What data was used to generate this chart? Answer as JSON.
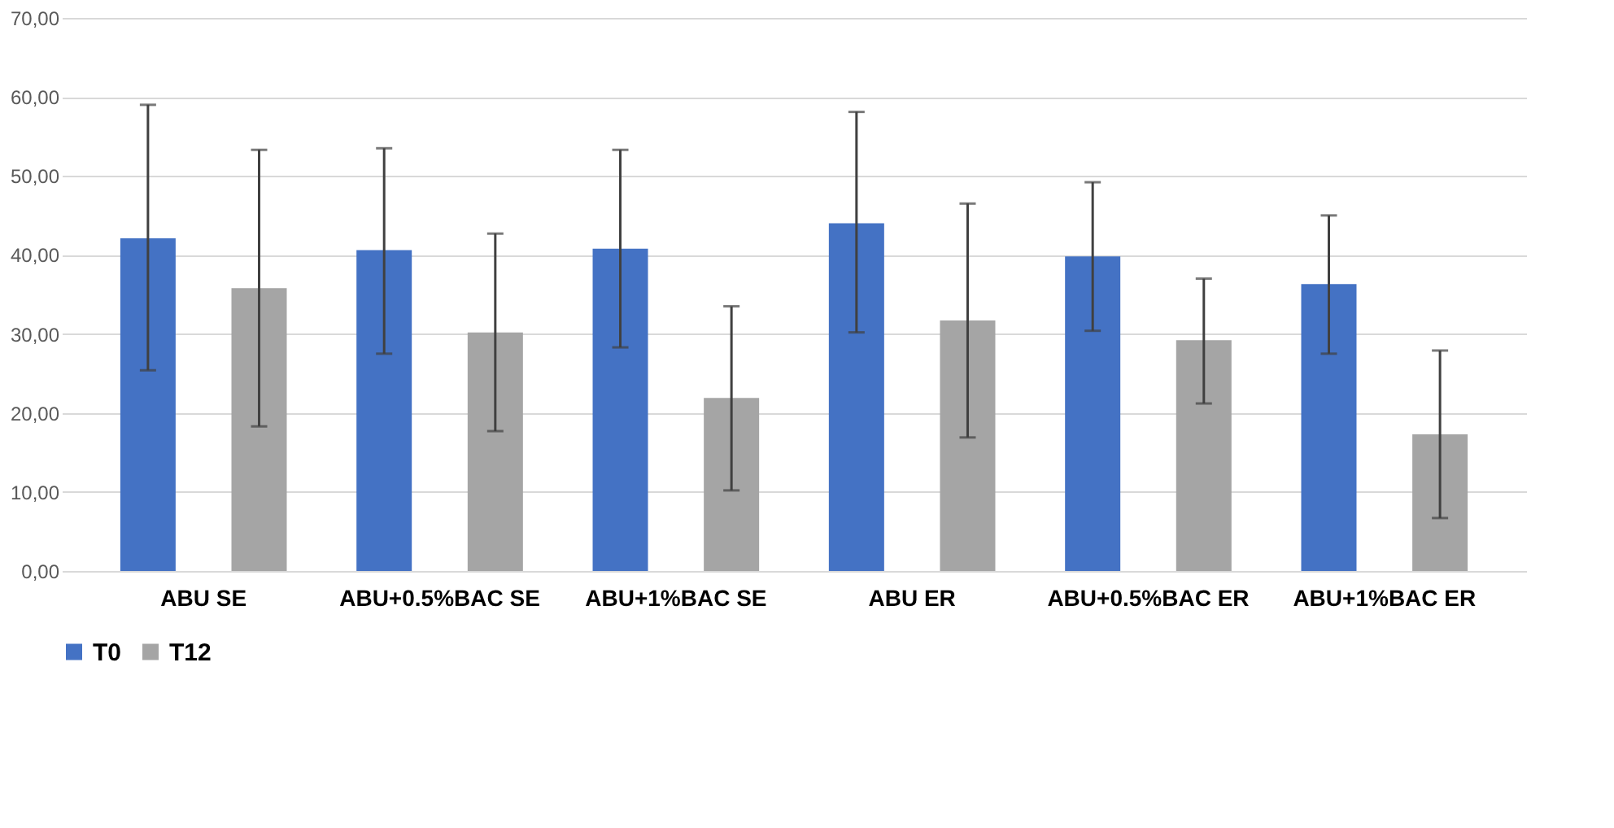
{
  "chart_data": {
    "type": "bar",
    "categories": [
      "ABU SE",
      "ABU+0.5%BAC SE",
      "ABU+1%BAC SE",
      "ABU ER",
      "ABU+0.5%BAC ER",
      "ABU+1%BAC ER"
    ],
    "series": [
      {
        "name": "T0",
        "color": "#4472c4",
        "values": [
          42.1,
          40.6,
          40.8,
          44.0,
          39.8,
          36.3
        ],
        "errors": [
          [
            25.4,
            59.0
          ],
          [
            27.5,
            53.5
          ],
          [
            28.3,
            53.3
          ],
          [
            30.2,
            58.1
          ],
          [
            30.4,
            49.2
          ],
          [
            27.5,
            45.0
          ]
        ]
      },
      {
        "name": "T12",
        "color": "#a5a5a5",
        "values": [
          35.8,
          30.2,
          21.9,
          31.7,
          29.2,
          17.3
        ],
        "errors": [
          [
            18.3,
            53.3
          ],
          [
            17.7,
            42.7
          ],
          [
            10.2,
            33.5
          ],
          [
            16.9,
            46.5
          ],
          [
            21.2,
            37.0
          ],
          [
            6.7,
            27.9
          ]
        ]
      }
    ],
    "ylim": [
      0,
      70
    ],
    "yticks": [
      {
        "value": 0,
        "label": "0,00"
      },
      {
        "value": 10,
        "label": "10,00"
      },
      {
        "value": 20,
        "label": "20,00"
      },
      {
        "value": 30,
        "label": "30,00"
      },
      {
        "value": 40,
        "label": "40,00"
      },
      {
        "value": 50,
        "label": "50,00"
      },
      {
        "value": 60,
        "label": "60,00"
      },
      {
        "value": 70,
        "label": "70,00"
      }
    ],
    "grid": "y",
    "legend": "bottom"
  }
}
